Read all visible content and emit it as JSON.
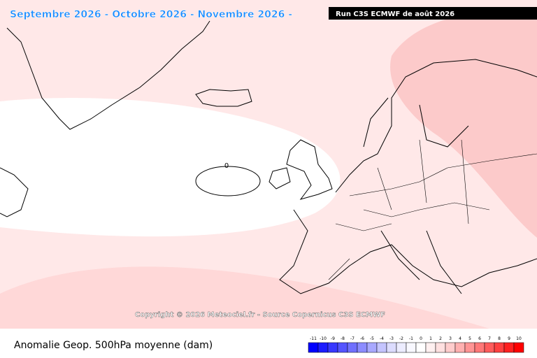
{
  "header": {
    "title": "Septembre 2026 - Octobre 2026 - Novembre 2026 -",
    "run": "Run C3S ECMWF de août 2026"
  },
  "map": {
    "contour_label": "0",
    "copyright": "Copyright © 2026 Meteociel.fr - Source Copernicus C3S ECMWF"
  },
  "footer": {
    "label": "Anomalie Geop. 500hPa moyenne (dam)",
    "legend": {
      "ticks": [
        -11,
        -10,
        -9,
        -8,
        -7,
        -6,
        -5,
        -4,
        -3,
        -2,
        -1,
        0,
        1,
        2,
        3,
        4,
        5,
        6,
        7,
        8,
        9,
        10
      ],
      "colors": [
        "#0000ff",
        "#1c1cff",
        "#3838ff",
        "#5454ff",
        "#7070ff",
        "#8c8cff",
        "#a8a8ff",
        "#c4c4ff",
        "#dcdcff",
        "#ececff",
        "#f8f8ff",
        "#ffffff",
        "#fff0f0",
        "#ffe0e0",
        "#ffcccc",
        "#ffb0b0",
        "#ff9494",
        "#ff7878",
        "#ff5c5c",
        "#ff4040",
        "#ff2020",
        "#ff0000"
      ]
    }
  }
}
